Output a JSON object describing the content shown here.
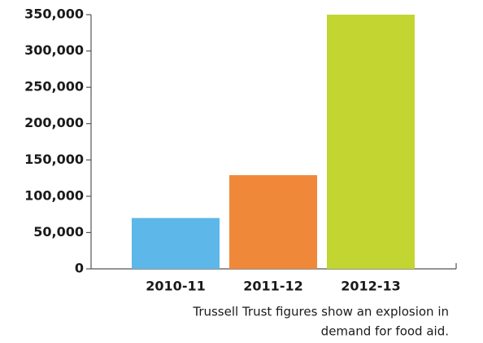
{
  "chart_data": {
    "type": "bar",
    "categories": [
      "2010-11",
      "2011-12",
      "2012-13"
    ],
    "values": [
      70000,
      129000,
      350000
    ],
    "colors": [
      "#5db7e8",
      "#f0883a",
      "#c2d530"
    ],
    "ylim": [
      0,
      350000
    ],
    "yticks": [
      0,
      {
        "value": 50000,
        "label": "50,000"
      },
      {
        "value": 100000,
        "label": "100,000"
      },
      {
        "value": 150000,
        "label": "150,000"
      },
      {
        "value": 200000,
        "label": "200,000"
      },
      {
        "value": 250000,
        "label": "250,000"
      },
      {
        "value": 300000,
        "label": "300,000"
      },
      {
        "value": 350000,
        "label": "350,000"
      }
    ],
    "caption": [
      "Trussell Trust figures show an explosion in",
      "demand for food aid."
    ]
  }
}
